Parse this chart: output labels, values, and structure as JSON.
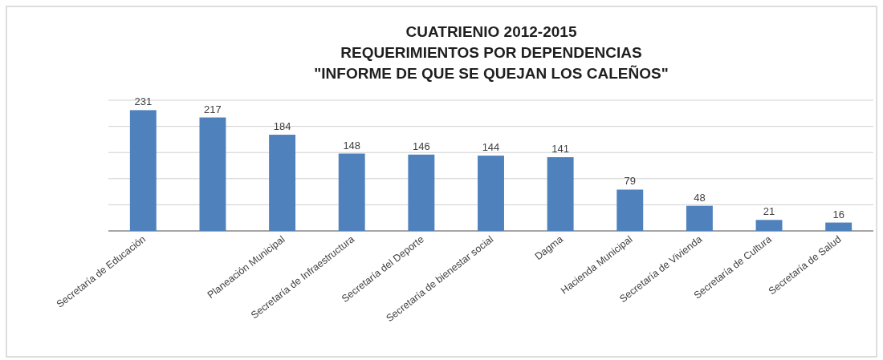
{
  "chart_data": {
    "type": "bar",
    "title": "CUATRIENIO 2012-2015\nREQUERIMIENTOS POR DEPENDENCIAS\n\"INFORME DE QUE SE QUEJAN LOS CALEÑOS\"",
    "categories": [
      "Secretaría de Educación",
      null,
      "Planeación Municipal",
      "Secretaría de Infraestructura",
      "Secretaría del Deporte",
      "Secretaría de bienestar social",
      "Dagma",
      "Hacienda Municipal",
      "Secretaría de Vivienda",
      "Secretaría de Cultura",
      "Secretaría de Salud"
    ],
    "values": [
      231,
      217,
      184,
      148,
      146,
      144,
      141,
      79,
      48,
      21,
      16
    ],
    "color": "#4f81bd",
    "ylim": [
      0,
      250
    ],
    "yticks": [
      0,
      50,
      100,
      150,
      200,
      250
    ],
    "grid": "y",
    "tick_labels": "x",
    "data_labels": true
  }
}
